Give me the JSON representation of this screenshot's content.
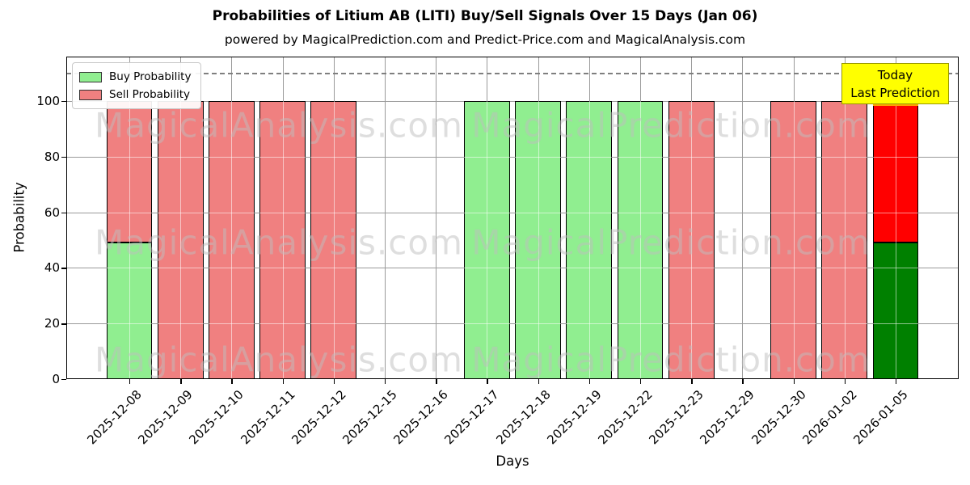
{
  "title": "Probabilities of Litium AB (LITI) Buy/Sell Signals Over 15 Days (Jan 06)",
  "subtitle": "powered by MagicalPrediction.com and Predict-Price.com and MagicalAnalysis.com",
  "legend": {
    "items": [
      {
        "label": "Buy Probability",
        "color": "#90EE90"
      },
      {
        "label": "Sell Probability",
        "color": "#F08080"
      }
    ]
  },
  "today_label": {
    "line1": "Today",
    "line2": "Last Prediction"
  },
  "watermarks": {
    "left": "MagicalAnalysis.com",
    "right": "MagicalPrediction.com"
  },
  "colors": {
    "buy": "#90EE90",
    "sell": "#F08080",
    "today_buy": "#008000",
    "today_sell": "#FF0000",
    "today_cap": "#FFA500",
    "bar_edge": "#000000",
    "grid": "#9a9a9a",
    "dashed_line": "#7f7f7f",
    "watermark": "rgba(190,190,190,0.5)",
    "today_box_bg": "#FFFF00"
  },
  "chart_data": {
    "type": "bar",
    "stacked": true,
    "title": "Probabilities of Litium AB (LITI) Buy/Sell Signals Over 15 Days (Jan 06)",
    "xlabel": "Days",
    "ylabel": "Probability",
    "categories": [
      "2025-12-08",
      "2025-12-09",
      "2025-12-10",
      "2025-12-11",
      "2025-12-12",
      "2025-12-15",
      "2025-12-16",
      "2025-12-17",
      "2025-12-18",
      "2025-12-19",
      "2025-12-22",
      "2025-12-23",
      "2025-12-29",
      "2025-12-30",
      "2026-01-02",
      "2026-01-05"
    ],
    "series": [
      {
        "name": "Buy Probability",
        "values": [
          49,
          0,
          0,
          0,
          0,
          0,
          0,
          100,
          100,
          100,
          100,
          0,
          0,
          0,
          0,
          49
        ]
      },
      {
        "name": "Sell Probability",
        "values": [
          51,
          100,
          100,
          100,
          100,
          0,
          0,
          0,
          0,
          0,
          0,
          100,
          0,
          100,
          100,
          51
        ]
      }
    ],
    "yticks": [
      0,
      20,
      40,
      60,
      80,
      100
    ],
    "ylim": [
      0,
      116
    ],
    "dashed_hline": 110,
    "today_index": 15,
    "legend_position": "upper-left",
    "grid": true
  }
}
